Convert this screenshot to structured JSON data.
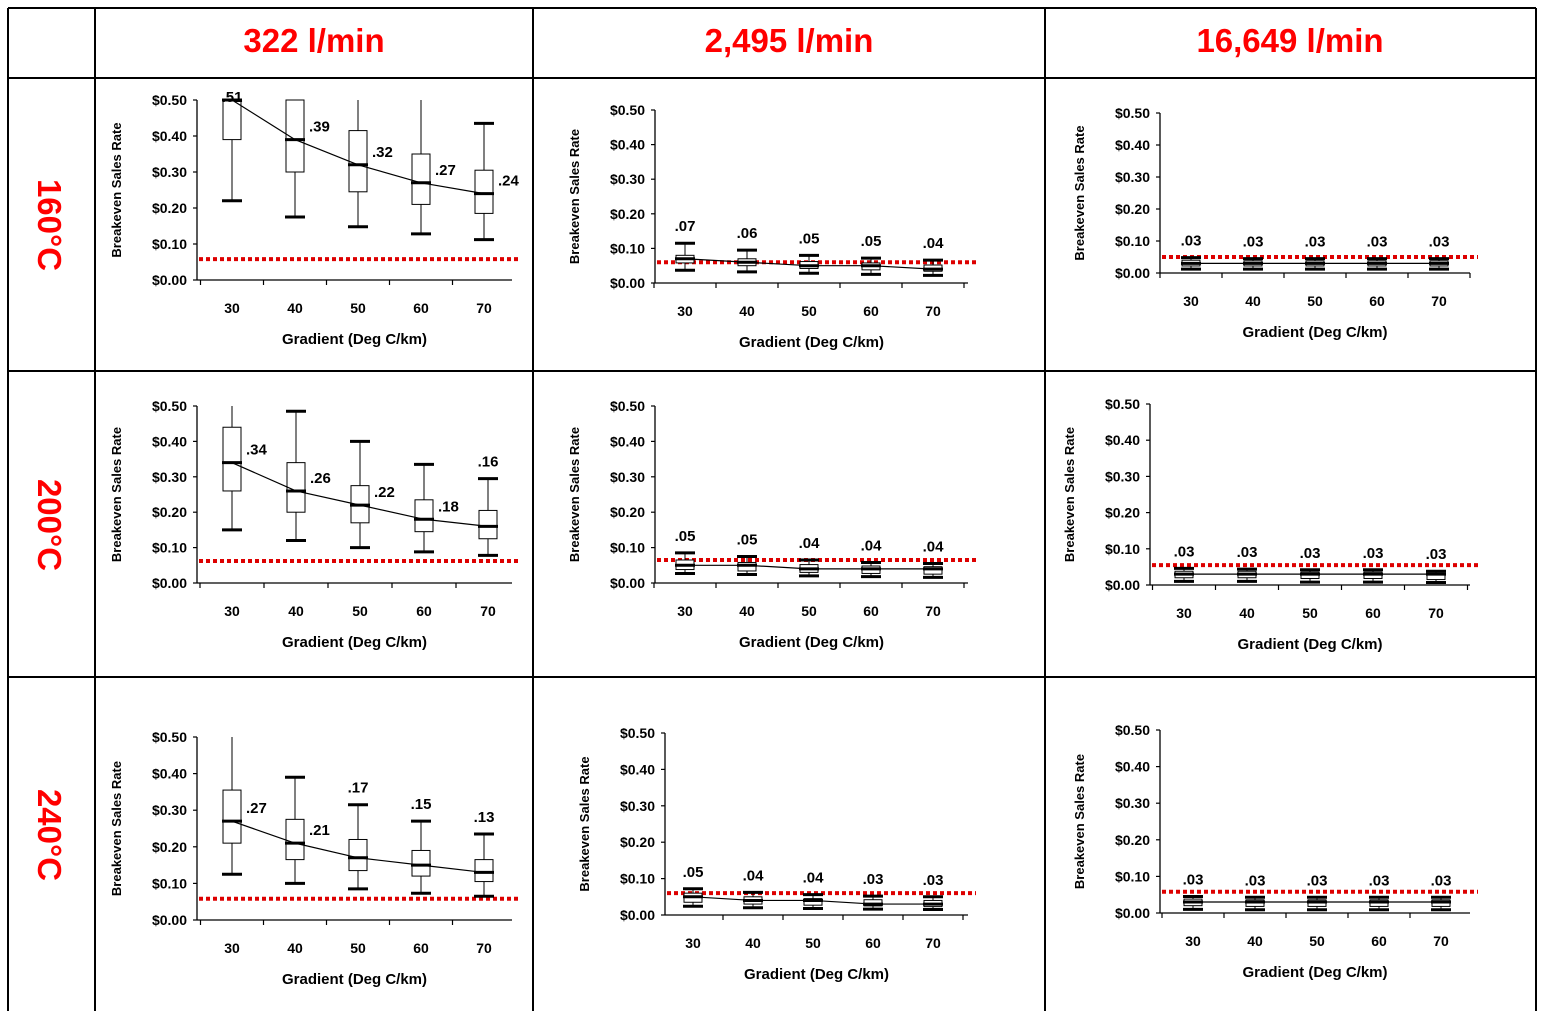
{
  "colors": {
    "header": "#ff0000",
    "threshold": "#dd0000",
    "axis": "#000000"
  },
  "column_headers": [
    "322 l/min",
    "2,495 l/min",
    "16,649 l/min"
  ],
  "row_headers": [
    "160°C",
    "200°C",
    "240°C"
  ],
  "chart_data": [
    {
      "type": "box",
      "row": 0,
      "col": 0,
      "ylabel": "Breakeven Sales Rate",
      "xlabel": "Gradient (Deg C/km)",
      "categories": [
        "30",
        "40",
        "50",
        "60",
        "70"
      ],
      "yticks": [
        "$0.00",
        "$0.10",
        "$0.20",
        "$0.30",
        "$0.40",
        "$0.50"
      ],
      "ylim": [
        0,
        0.5
      ],
      "median": [
        0.51,
        0.39,
        0.32,
        0.27,
        0.24
      ],
      "q1": [
        0.39,
        0.3,
        0.245,
        0.21,
        0.185
      ],
      "q3": [
        0.5,
        0.5,
        0.415,
        0.35,
        0.305
      ],
      "min": [
        0.22,
        0.175,
        0.148,
        0.128,
        0.112
      ],
      "max": [
        0.5,
        0.5,
        0.5,
        0.5,
        0.435
      ],
      "threshold": 0.058,
      "labels": [
        ".51",
        ".39",
        ".32",
        ".27",
        ".24"
      ]
    },
    {
      "type": "box",
      "row": 0,
      "col": 1,
      "ylabel": "Breakeven Sales Rate",
      "xlabel": "Gradient (Deg C/km)",
      "categories": [
        "30",
        "40",
        "50",
        "60",
        "70"
      ],
      "yticks": [
        "$0.00",
        "$0.10",
        "$0.20",
        "$0.30",
        "$0.40",
        "$0.50"
      ],
      "ylim": [
        0,
        0.5
      ],
      "median": [
        0.07,
        0.06,
        0.05,
        0.05,
        0.04
      ],
      "q1": [
        0.058,
        0.05,
        0.042,
        0.038,
        0.034
      ],
      "q3": [
        0.08,
        0.07,
        0.062,
        0.058,
        0.052
      ],
      "min": [
        0.037,
        0.032,
        0.028,
        0.025,
        0.022
      ],
      "max": [
        0.115,
        0.095,
        0.08,
        0.072,
        0.066
      ],
      "threshold": 0.06,
      "labels": [
        ".07",
        ".06",
        ".05",
        ".05",
        ".04"
      ]
    },
    {
      "type": "box",
      "row": 0,
      "col": 2,
      "ylabel": "Breakeven Sales Rate",
      "xlabel": "Gradient (Deg C/km)",
      "categories": [
        "30",
        "40",
        "50",
        "60",
        "70"
      ],
      "yticks": [
        "$0.00",
        "$0.10",
        "$0.20",
        "$0.30",
        "$0.40",
        "$0.50"
      ],
      "ylim": [
        0,
        0.5
      ],
      "median": [
        0.03,
        0.03,
        0.03,
        0.03,
        0.03
      ],
      "q1": [
        0.022,
        0.022,
        0.022,
        0.022,
        0.022
      ],
      "q3": [
        0.04,
        0.038,
        0.038,
        0.038,
        0.038
      ],
      "min": [
        0.012,
        0.012,
        0.012,
        0.012,
        0.012
      ],
      "max": [
        0.048,
        0.045,
        0.045,
        0.045,
        0.045
      ],
      "threshold": 0.05,
      "labels": [
        ".03",
        ".03",
        ".03",
        ".03",
        ".03"
      ]
    },
    {
      "type": "box",
      "row": 1,
      "col": 0,
      "ylabel": "Breakeven Sales Rate",
      "xlabel": "Gradient  (Deg C/km)",
      "categories": [
        "30",
        "40",
        "50",
        "60",
        "70"
      ],
      "yticks": [
        "$0.00",
        "$0.10",
        "$0.20",
        "$0.30",
        "$0.40",
        "$0.50"
      ],
      "ylim": [
        0,
        0.5
      ],
      "median": [
        0.34,
        0.26,
        0.22,
        0.18,
        0.16
      ],
      "q1": [
        0.26,
        0.2,
        0.17,
        0.145,
        0.125
      ],
      "q3": [
        0.44,
        0.34,
        0.275,
        0.235,
        0.205
      ],
      "min": [
        0.15,
        0.12,
        0.1,
        0.088,
        0.078
      ],
      "max": [
        0.5,
        0.485,
        0.4,
        0.335,
        0.295
      ],
      "threshold": 0.062,
      "labels": [
        ".34",
        ".26",
        ".22",
        ".18",
        ".16"
      ]
    },
    {
      "type": "box",
      "row": 1,
      "col": 1,
      "ylabel": "Breakeven Sales Rate",
      "xlabel": "Gradient  (Deg C/km)",
      "categories": [
        "30",
        "40",
        "50",
        "60",
        "70"
      ],
      "yticks": [
        "$0.00",
        "$0.10",
        "$0.20",
        "$0.30",
        "$0.40",
        "$0.50"
      ],
      "ylim": [
        0,
        0.5
      ],
      "median": [
        0.05,
        0.05,
        0.04,
        0.04,
        0.04
      ],
      "q1": [
        0.038,
        0.034,
        0.03,
        0.027,
        0.025
      ],
      "q3": [
        0.065,
        0.058,
        0.052,
        0.048,
        0.046
      ],
      "min": [
        0.027,
        0.024,
        0.02,
        0.018,
        0.016
      ],
      "max": [
        0.085,
        0.075,
        0.065,
        0.058,
        0.055
      ],
      "threshold": 0.065,
      "labels": [
        ".05",
        ".05",
        ".04",
        ".04",
        ".04"
      ]
    },
    {
      "type": "box",
      "row": 1,
      "col": 2,
      "ylabel": "Breakeven Sales Rate",
      "xlabel": "Gradient  (Deg C/km)",
      "categories": [
        "30",
        "40",
        "50",
        "60",
        "70"
      ],
      "yticks": [
        "$0.00",
        "$0.10",
        "$0.20",
        "$0.30",
        "$0.40",
        "$0.50"
      ],
      "ylim": [
        0,
        0.5
      ],
      "median": [
        0.03,
        0.03,
        0.03,
        0.03,
        0.03
      ],
      "q1": [
        0.02,
        0.02,
        0.018,
        0.018,
        0.015
      ],
      "q3": [
        0.038,
        0.038,
        0.036,
        0.036,
        0.032
      ],
      "min": [
        0.01,
        0.01,
        0.008,
        0.008,
        0.007
      ],
      "max": [
        0.046,
        0.044,
        0.042,
        0.042,
        0.038
      ],
      "threshold": 0.055,
      "labels": [
        ".03",
        ".03",
        ".03",
        ".03",
        ".03"
      ]
    },
    {
      "type": "box",
      "row": 2,
      "col": 0,
      "ylabel": "Breakeven Sales Rate",
      "xlabel": "Gradient (Deg C/km)",
      "categories": [
        "30",
        "40",
        "50",
        "60",
        "70"
      ],
      "yticks": [
        "$0.00",
        "$0.10",
        "$0.20",
        "$0.30",
        "$0.40",
        "$0.50"
      ],
      "ylim": [
        0,
        0.5
      ],
      "median": [
        0.27,
        0.21,
        0.17,
        0.15,
        0.13
      ],
      "q1": [
        0.21,
        0.165,
        0.135,
        0.12,
        0.105
      ],
      "q3": [
        0.355,
        0.275,
        0.22,
        0.19,
        0.165
      ],
      "min": [
        0.125,
        0.1,
        0.085,
        0.073,
        0.065
      ],
      "max": [
        0.5,
        0.39,
        0.315,
        0.27,
        0.235
      ],
      "threshold": 0.058,
      "labels": [
        ".27",
        ".21",
        ".17",
        ".15",
        ".13"
      ]
    },
    {
      "type": "box",
      "row": 2,
      "col": 1,
      "ylabel": "Breakeven Sales Rate",
      "xlabel": "Gradient (Deg C/km)",
      "categories": [
        "30",
        "40",
        "50",
        "60",
        "70"
      ],
      "yticks": [
        "$0.00",
        "$0.10",
        "$0.20",
        "$0.30",
        "$0.40",
        "$0.50"
      ],
      "ylim": [
        0,
        0.5
      ],
      "median": [
        0.05,
        0.04,
        0.04,
        0.03,
        0.03
      ],
      "q1": [
        0.035,
        0.03,
        0.027,
        0.025,
        0.023
      ],
      "q3": [
        0.06,
        0.05,
        0.045,
        0.042,
        0.04
      ],
      "min": [
        0.024,
        0.02,
        0.018,
        0.016,
        0.015
      ],
      "max": [
        0.072,
        0.062,
        0.056,
        0.052,
        0.05
      ],
      "threshold": 0.06,
      "labels": [
        ".05",
        ".04",
        ".04",
        ".03",
        ".03"
      ]
    },
    {
      "type": "box",
      "row": 2,
      "col": 2,
      "ylabel": "Breakeven Sales Rate",
      "xlabel": "Gradient (Deg C/km)",
      "categories": [
        "30",
        "40",
        "50",
        "60",
        "70"
      ],
      "yticks": [
        "$0.00",
        "$0.10",
        "$0.20",
        "$0.30",
        "$0.40",
        "$0.50"
      ],
      "ylim": [
        0,
        0.5
      ],
      "median": [
        0.03,
        0.03,
        0.03,
        0.03,
        0.03
      ],
      "q1": [
        0.02,
        0.018,
        0.018,
        0.018,
        0.018
      ],
      "q3": [
        0.038,
        0.036,
        0.036,
        0.036,
        0.036
      ],
      "min": [
        0.01,
        0.009,
        0.009,
        0.009,
        0.009
      ],
      "max": [
        0.045,
        0.043,
        0.043,
        0.043,
        0.043
      ],
      "threshold": 0.058,
      "labels": [
        ".03",
        ".03",
        ".03",
        ".03",
        ".03"
      ]
    }
  ]
}
